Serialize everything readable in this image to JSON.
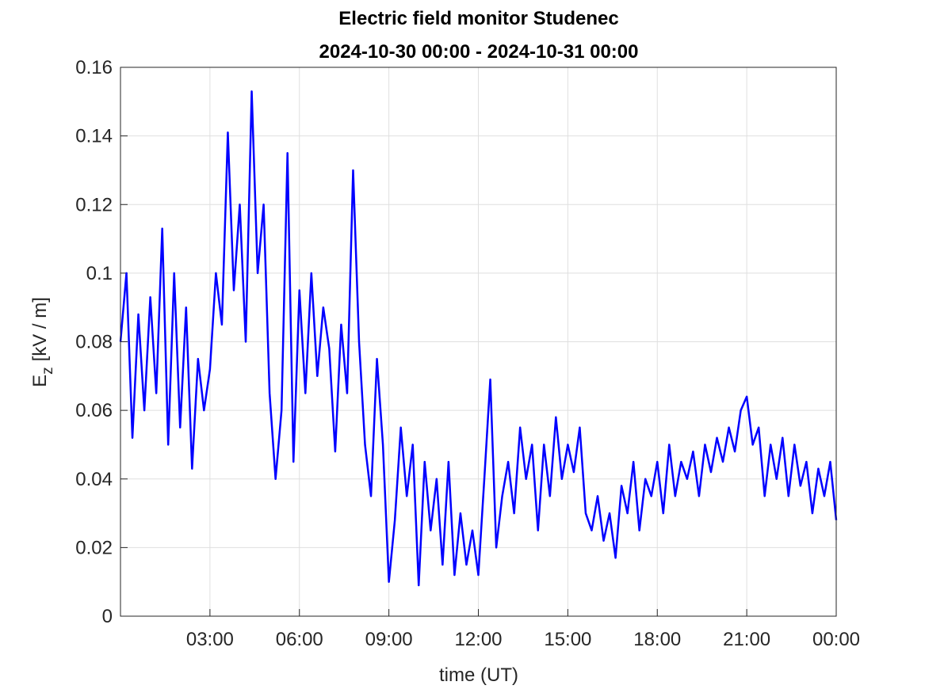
{
  "chart_data": {
    "type": "line",
    "title": "Electric field monitor Studenec",
    "subtitle": "2024-10-30 00:00 - 2024-10-31 00:00",
    "x_label": "time (UT)",
    "y_label": {
      "base": "E",
      "subscript": "z",
      "rest": "[kV / m]"
    },
    "xlim": [
      0,
      24
    ],
    "xticks": [
      {
        "value": 3,
        "label": "03:00"
      },
      {
        "value": 6,
        "label": "06:00"
      },
      {
        "value": 9,
        "label": "09:00"
      },
      {
        "value": 12,
        "label": "12:00"
      },
      {
        "value": 15,
        "label": "15:00"
      },
      {
        "value": 18,
        "label": "18:00"
      },
      {
        "value": 21,
        "label": "21:00"
      },
      {
        "value": 24,
        "label": "00:00"
      }
    ],
    "ylim": [
      0,
      0.16
    ],
    "yticks": [
      0,
      0.02,
      0.04,
      0.06,
      0.08,
      0.1,
      0.12,
      0.14,
      0.16
    ],
    "grid": true,
    "x": [
      0,
      0.2,
      0.4,
      0.6,
      0.8,
      1,
      1.2,
      1.4,
      1.6,
      1.8,
      2,
      2.2,
      2.4,
      2.6,
      2.8,
      3,
      3.2,
      3.4,
      3.6,
      3.8,
      4,
      4.2,
      4.4,
      4.6,
      4.8,
      5,
      5.2,
      5.4,
      5.6,
      5.8,
      6,
      6.2,
      6.4,
      6.6,
      6.8,
      7,
      7.2,
      7.4,
      7.6,
      7.8,
      8,
      8.2,
      8.4,
      8.6,
      8.8,
      9,
      9.2,
      9.4,
      9.6,
      9.8,
      10,
      10.2,
      10.4,
      10.6,
      10.8,
      11,
      11.2,
      11.4,
      11.6,
      11.8,
      12,
      12.2,
      12.4,
      12.6,
      12.8,
      13,
      13.2,
      13.4,
      13.6,
      13.8,
      14,
      14.2,
      14.4,
      14.6,
      14.8,
      15,
      15.2,
      15.4,
      15.6,
      15.8,
      16,
      16.2,
      16.4,
      16.6,
      16.8,
      17,
      17.2,
      17.4,
      17.6,
      17.8,
      18,
      18.2,
      18.4,
      18.6,
      18.8,
      19,
      19.2,
      19.4,
      19.6,
      19.8,
      20,
      20.2,
      20.4,
      20.6,
      20.8,
      21,
      21.2,
      21.4,
      21.6,
      21.8,
      22,
      22.2,
      22.4,
      22.6,
      22.8,
      23,
      23.2,
      23.4,
      23.6,
      23.8,
      24
    ],
    "series": [
      {
        "name": "Ez",
        "color": "#0000ff",
        "values": [
          0.08,
          0.1,
          0.052,
          0.088,
          0.06,
          0.093,
          0.065,
          0.113,
          0.05,
          0.1,
          0.055,
          0.09,
          0.043,
          0.075,
          0.06,
          0.072,
          0.1,
          0.085,
          0.141,
          0.095,
          0.12,
          0.08,
          0.153,
          0.1,
          0.12,
          0.065,
          0.04,
          0.06,
          0.135,
          0.045,
          0.095,
          0.065,
          0.1,
          0.07,
          0.09,
          0.078,
          0.048,
          0.085,
          0.065,
          0.13,
          0.08,
          0.05,
          0.035,
          0.075,
          0.05,
          0.01,
          0.028,
          0.055,
          0.035,
          0.05,
          0.009,
          0.045,
          0.025,
          0.04,
          0.015,
          0.045,
          0.012,
          0.03,
          0.015,
          0.025,
          0.012,
          0.04,
          0.069,
          0.02,
          0.035,
          0.045,
          0.03,
          0.055,
          0.04,
          0.05,
          0.025,
          0.05,
          0.035,
          0.058,
          0.04,
          0.05,
          0.042,
          0.055,
          0.03,
          0.025,
          0.035,
          0.022,
          0.03,
          0.017,
          0.038,
          0.03,
          0.045,
          0.025,
          0.04,
          0.035,
          0.045,
          0.03,
          0.05,
          0.035,
          0.045,
          0.04,
          0.048,
          0.035,
          0.05,
          0.042,
          0.052,
          0.045,
          0.055,
          0.048,
          0.06,
          0.064,
          0.05,
          0.055,
          0.035,
          0.05,
          0.04,
          0.052,
          0.035,
          0.05,
          0.038,
          0.045,
          0.03,
          0.043,
          0.035,
          0.045,
          0.028
        ]
      }
    ]
  }
}
